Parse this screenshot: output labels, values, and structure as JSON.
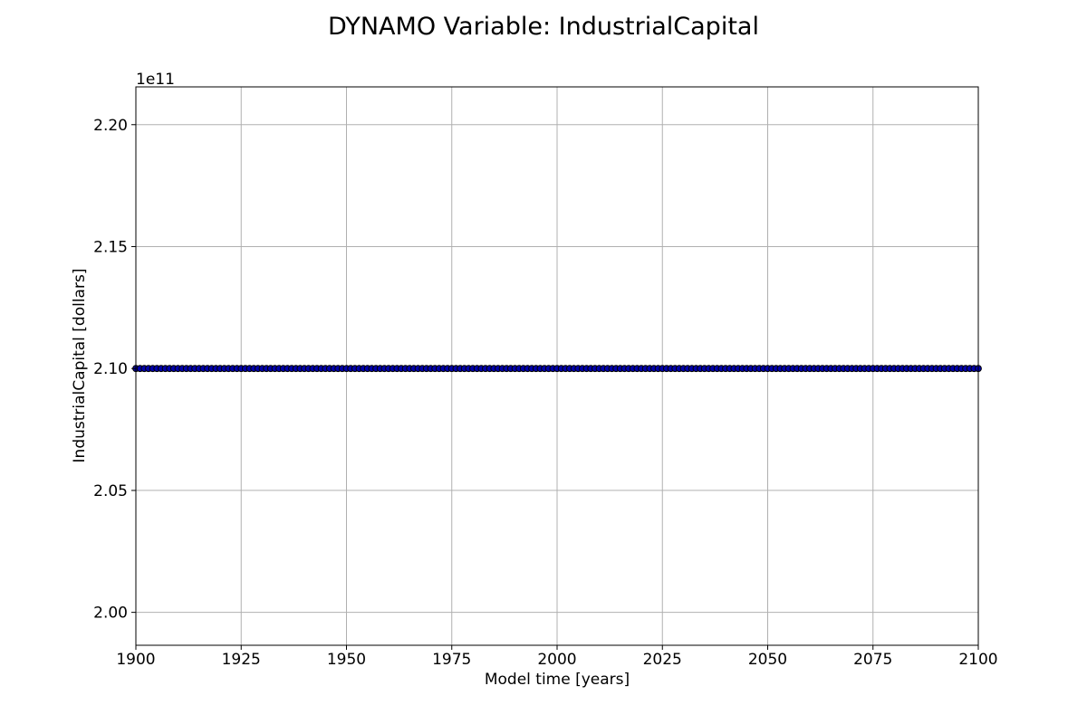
{
  "chart_data": {
    "type": "line",
    "title": "DYNAMO Variable: IndustrialCapital",
    "xlabel": "Model time [years]",
    "ylabel": "IndustrialCapital [dollars]",
    "y_offset_label": "1e11",
    "xlim": [
      1900,
      2100
    ],
    "ylim": [
      1.9865,
      2.2155
    ],
    "x_ticks": [
      1900,
      1925,
      1950,
      1975,
      2000,
      2025,
      2050,
      2075,
      2100
    ],
    "x_tick_labels": [
      "1900",
      "1925",
      "1950",
      "1975",
      "2000",
      "2025",
      "2050",
      "2075",
      "2100"
    ],
    "y_ticks": [
      2.0,
      2.05,
      2.1,
      2.15,
      2.2
    ],
    "y_tick_labels": [
      "2.00",
      "2.05",
      "2.10",
      "2.15",
      "2.20"
    ],
    "y_scale_multiplier": 100000000000,
    "grid": true,
    "series": [
      {
        "color": "#0000aa",
        "marker": "circle",
        "marker_edge_color": "#000000",
        "x_start": 1900,
        "x_end": 2100,
        "x_step": 1,
        "constant_value": 2.1
      }
    ]
  }
}
